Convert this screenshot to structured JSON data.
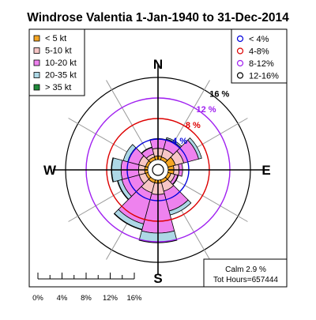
{
  "chart_data": {
    "type": "windrose",
    "title": "Windrose  Valentia 1-Jan-1940 to 31-Dec-2014",
    "compass": [
      "N",
      "E",
      "S",
      "W"
    ],
    "speed_legend": [
      {
        "label": "< 5  kt",
        "color": "#f5a623"
      },
      {
        "label": "5-10 kt",
        "color": "#f7c6c6"
      },
      {
        "label": "10-20 kt",
        "color": "#ee82ee"
      },
      {
        "label": "20-35 kt",
        "color": "#add8e6"
      },
      {
        "label": "> 35 kt",
        "color": "#1f8a3a"
      }
    ],
    "ring_legend": [
      {
        "label": "< 4%",
        "color": "#0000dd"
      },
      {
        "label": "4-8%",
        "color": "#dd0000"
      },
      {
        "label": "8-12%",
        "color": "#a020f0"
      },
      {
        "label": "12-16%",
        "color": "#000000"
      }
    ],
    "rings": [
      {
        "value": 4,
        "label": "4 %",
        "color": "#0000dd"
      },
      {
        "value": 8,
        "label": "8 %",
        "color": "#dd0000"
      },
      {
        "value": 12,
        "label": "12 %",
        "color": "#a020f0"
      },
      {
        "value": 16,
        "label": "16 %",
        "color": "#000000"
      }
    ],
    "max_percent": 16,
    "sector_width_deg": 30,
    "directions_deg": [
      0,
      30,
      60,
      90,
      120,
      150,
      180,
      210,
      240,
      270,
      300,
      330
    ],
    "series": [
      {
        "name": "< 5  kt",
        "values": [
          0.7,
          0.6,
          1.5,
          1.1,
          0.6,
          0.6,
          0.6,
          0.6,
          0.5,
          0.6,
          0.5,
          0.6
        ]
      },
      {
        "name": "5-10 kt",
        "values": [
          1.5,
          1.6,
          1.7,
          1.0,
          0.8,
          1.7,
          2.2,
          2.0,
          1.3,
          1.2,
          1.4,
          0.6
        ]
      },
      {
        "name": "10-20 kt",
        "values": [
          1.8,
          2.0,
          3.0,
          0.7,
          0.6,
          4.0,
          7.5,
          6.3,
          3.5,
          3.4,
          2.2,
          1.3
        ]
      },
      {
        "name": "20-35 kt",
        "values": [
          0.1,
          0.3,
          0.6,
          0.0,
          0.1,
          0.8,
          1.8,
          1.1,
          0.8,
          1.8,
          0.9,
          0.1
        ]
      },
      {
        "name": "> 35 kt",
        "values": [
          0.0,
          0.0,
          0.0,
          0.0,
          0.0,
          0.0,
          0.1,
          0.1,
          0.1,
          0.1,
          0.0,
          0.0
        ]
      }
    ],
    "calm_text": "Calm 2.9 %",
    "hours_text": "Tot Hours=657444",
    "scale_ticks": [
      "0%",
      "4%",
      "8%",
      "12%",
      "16%"
    ]
  }
}
